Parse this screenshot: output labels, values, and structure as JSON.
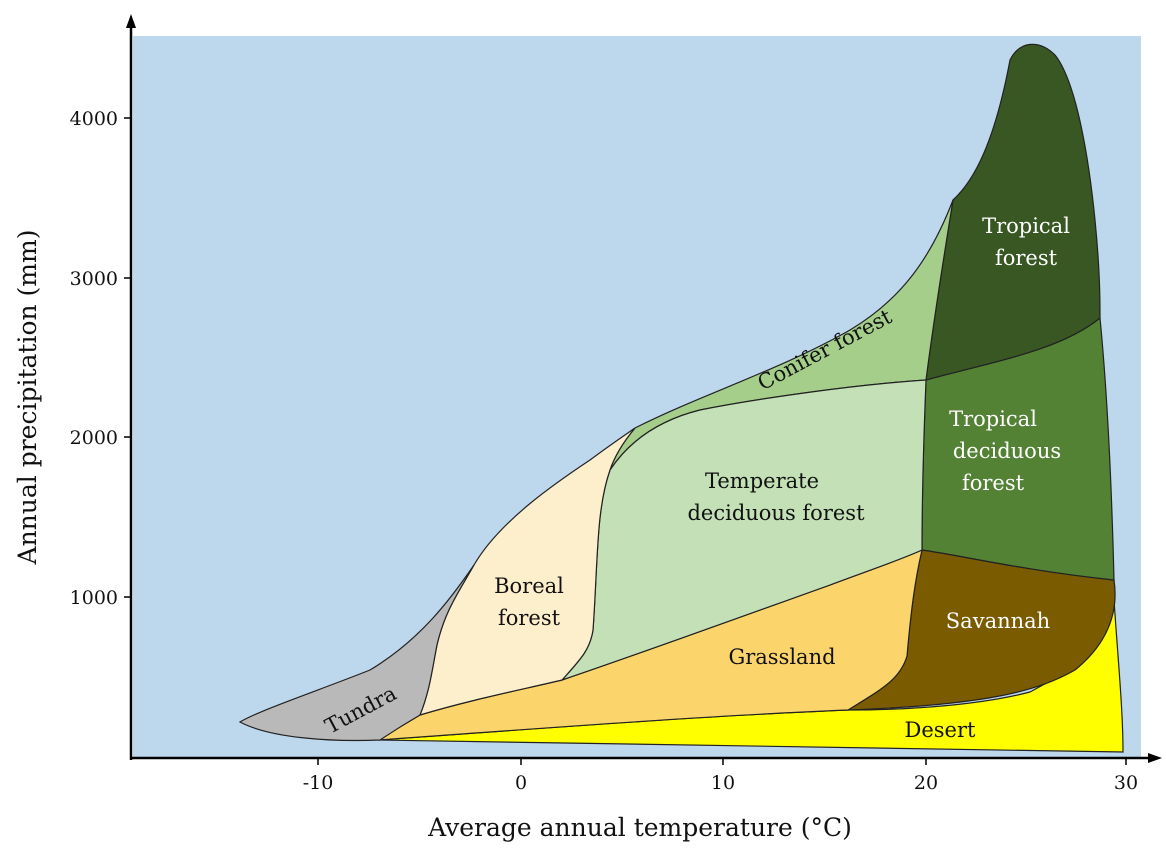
{
  "axes": {
    "x_title": "Average annual temperature (°C)",
    "y_title": "Annual precipitation (mm)",
    "x_ticks": [
      "-10",
      "0",
      "10",
      "20",
      "30"
    ],
    "y_ticks": [
      "1000",
      "2000",
      "3000",
      "4000"
    ]
  },
  "biomes": {
    "tundra": "Tundra",
    "boreal_1": "Boreal",
    "boreal_2": "forest",
    "temperate_1": "Temperate",
    "temperate_2": "deciduous forest",
    "conifer": "Conifer forest",
    "grassland": "Grassland",
    "savannah": "Savannah",
    "desert": "Desert",
    "tropical_forest_1": "Tropical",
    "tropical_forest_2": "forest",
    "tropical_decid_1": "Tropical",
    "tropical_decid_2": "deciduous",
    "tropical_decid_3": "forest"
  },
  "colors": {
    "background": "#bdd7ed",
    "tundra": "#b9b9b9",
    "boreal": "#fdefcb",
    "temperate": "#c4e0b6",
    "conifer": "#a5ce8b",
    "grassland": "#fbd56b",
    "savannah": "#7a5b00",
    "desert": "#ffff00",
    "tropical_forest": "#385723",
    "tropical_deciduous": "#548235"
  }
}
